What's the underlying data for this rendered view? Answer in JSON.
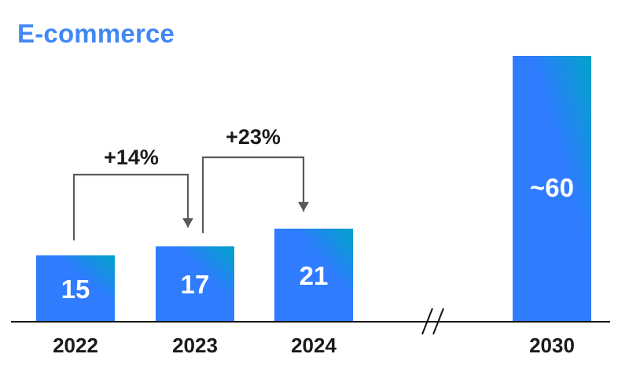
{
  "colors": {
    "title": "#4287f5",
    "bar_gradient_start": "#2f7cff",
    "bar_gradient_end": "#00a3c8",
    "axis": "#111111",
    "connector": "#58595b",
    "text": "#1a1a1a"
  },
  "chart_data": {
    "type": "bar",
    "title": "E-commerce",
    "xlabel": "",
    "ylabel": "",
    "grid": false,
    "legend": "none",
    "axis_break_between": [
      "2024",
      "2030"
    ],
    "categories": [
      "2022",
      "2023",
      "2024",
      "2030"
    ],
    "values": [
      15,
      17,
      21,
      60
    ],
    "data_labels": [
      "15",
      "17",
      "21",
      "~60"
    ],
    "ylim": [
      0,
      60
    ],
    "annotations": [
      {
        "from": "2022",
        "to": "2023",
        "label": "+14%"
      },
      {
        "from": "2023",
        "to": "2024",
        "label": "+23%"
      }
    ]
  }
}
